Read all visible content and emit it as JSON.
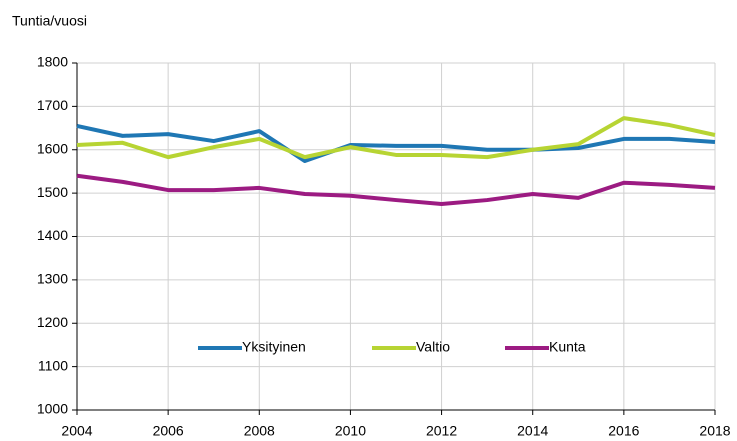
{
  "chart_data": {
    "type": "line",
    "y_label": "Tuntia/vuosi",
    "x": [
      2004,
      2005,
      2006,
      2007,
      2008,
      2009,
      2010,
      2011,
      2012,
      2013,
      2014,
      2015,
      2016,
      2017,
      2018
    ],
    "series": [
      {
        "name": "Yksityinen",
        "color": "#1f77b4",
        "values": [
          1655,
          1632,
          1636,
          1620,
          1643,
          1574,
          1611,
          1609,
          1609,
          1600,
          1600,
          1604,
          1625,
          1625,
          1618
        ]
      },
      {
        "name": "Valtio",
        "color": "#b7d433",
        "values": [
          1611,
          1616,
          1583,
          1606,
          1625,
          1583,
          1606,
          1588,
          1588,
          1583,
          1600,
          1613,
          1673,
          1657,
          1634
        ]
      },
      {
        "name": "Kunta",
        "color": "#9c1b82",
        "values": [
          1540,
          1526,
          1507,
          1507,
          1512,
          1498,
          1494,
          1484,
          1475,
          1484,
          1498,
          1489,
          1524,
          1519,
          1512
        ]
      }
    ],
    "xlim": [
      2004,
      2018
    ],
    "xticks": [
      2004,
      2006,
      2008,
      2010,
      2012,
      2014,
      2016,
      2018
    ],
    "ylim": [
      1000,
      1800
    ],
    "yticks": [
      1000,
      1100,
      1200,
      1300,
      1400,
      1500,
      1600,
      1700,
      1800
    ],
    "grid": true,
    "legend": "bottom"
  }
}
